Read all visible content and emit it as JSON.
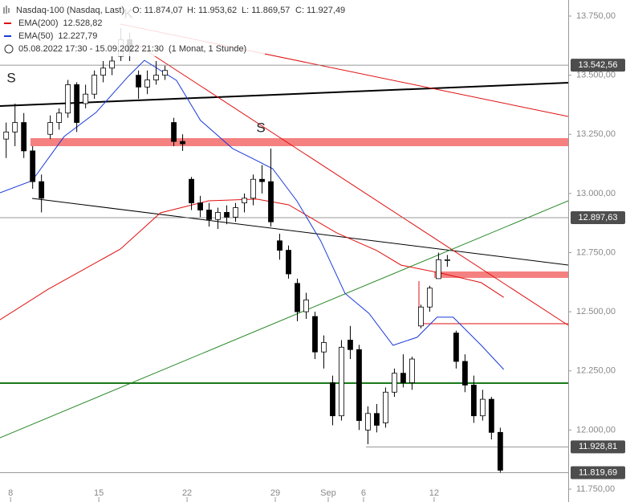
{
  "chart_data": {
    "type": "candlestick",
    "title": "Nasdaq-100 (Nasdaq, Last)",
    "quote": [
      "O: 11.874,07",
      "H: 11.953,62",
      "L: 11.869,57",
      "C: 11.927,49"
    ],
    "period": "05.08.2022 17:30 - 15.09.2022 21:30",
    "interval": "(1 Monat, 1 Stunde)",
    "annotations": [
      "S",
      "K",
      "S"
    ],
    "x": [
      -0.25,
      0.25,
      0.75,
      1.25,
      1.75,
      2.25,
      2.75,
      3.25,
      3.75,
      4.25,
      4.75,
      5.25,
      5.75,
      6.25,
      6.75,
      7.25,
      7.75,
      8.25,
      8.75,
      9.25,
      9.75,
      10.25,
      10.75,
      11.25,
      11.75,
      12.25,
      12.75,
      13.25,
      13.75,
      14.25,
      14.75,
      15.25,
      15.75,
      16.25,
      16.75,
      17.25,
      17.75,
      18.25,
      18.75,
      19.25,
      19.75,
      20.25,
      20.75,
      21.25,
      21.75,
      22.25,
      22.75,
      23.25,
      23.75,
      24.25,
      24.75,
      25.25,
      25.75,
      26.25,
      26.75,
      27.25,
      27.75
    ],
    "open": [
      13230,
      13260,
      13300,
      13180,
      13050,
      13250,
      13300,
      13340,
      13460,
      13380,
      13420,
      13500,
      13530,
      13580,
      13650,
      13500,
      13450,
      13480,
      13500,
      13300,
      13220,
      13060,
      12960,
      12930,
      12890,
      12920,
      12900,
      12960,
      12980,
      13060,
      13050,
      12800,
      12760,
      12620,
      12500,
      12480,
      12330,
      12200,
      12060,
      12380,
      12340,
      12000,
      12070,
      12030,
      12160,
      12240,
      12200,
      12440,
      12520,
      12640,
      12720,
      12410,
      12290,
      12190,
      12060,
      12130,
      11990
    ],
    "high": [
      13300,
      13380,
      13340,
      13200,
      13080,
      13330,
      13360,
      13480,
      13470,
      13460,
      13520,
      13560,
      13580,
      13700,
      13680,
      13520,
      13520,
      13560,
      13540,
      13320,
      13250,
      13070,
      12990,
      12960,
      12940,
      12950,
      12960,
      13000,
      13080,
      13120,
      13190,
      12830,
      12780,
      12640,
      12580,
      12500,
      12400,
      12230,
      12380,
      12440,
      12360,
      12100,
      12110,
      12180,
      12260,
      12320,
      12310,
      12530,
      12610,
      12750,
      12740,
      12420,
      12320,
      12230,
      12170,
      12140,
      12010
    ],
    "low": [
      13150,
      13200,
      13150,
      13020,
      12920,
      13230,
      13270,
      13320,
      13260,
      13360,
      13400,
      13470,
      13500,
      13560,
      13560,
      13400,
      13420,
      13460,
      13480,
      13200,
      13180,
      12930,
      12900,
      12860,
      12850,
      12870,
      12880,
      12920,
      12950,
      13000,
      12860,
      12720,
      12640,
      12460,
      12470,
      12300,
      12260,
      12020,
      12040,
      12300,
      12000,
      11940,
      11990,
      12010,
      12140,
      12180,
      12170,
      12430,
      12500,
      12640,
      12690,
      12260,
      12160,
      12030,
      12040,
      11960,
      11820
    ],
    "close": [
      13260,
      13300,
      13180,
      13050,
      12980,
      13300,
      13340,
      13460,
      13300,
      13420,
      13500,
      13530,
      13560,
      13650,
      13600,
      13450,
      13480,
      13500,
      13520,
      13220,
      13210,
      12960,
      12930,
      12890,
      12920,
      12900,
      12940,
      12980,
      13060,
      13050,
      12880,
      12760,
      12660,
      12500,
      12550,
      12330,
      12370,
      12060,
      12350,
      12340,
      12040,
      12070,
      12020,
      12160,
      12240,
      12200,
      12300,
      12520,
      12600,
      12720,
      12720,
      12290,
      12190,
      12060,
      12130,
      11990,
      11830
    ],
    "up_color": "#ffffff",
    "down_color": "#000000",
    "series": [
      {
        "name": "EMA(200)",
        "color": "#e01010",
        "legend_value": "12.528,82",
        "x": [
          -0.6,
          2.13,
          6.22,
          8.49,
          11.22,
          13.95,
          15.76,
          18.49,
          20.76,
          22.13,
          24.4,
          26.67,
          27.95
        ],
        "values": [
          12466,
          12595,
          12765,
          12918,
          12969,
          12976,
          12952,
          12833,
          12758,
          12697,
          12663,
          12623,
          12561
        ]
      },
      {
        "name": "EMA(50)",
        "color": "#1a3ad8",
        "legend_value": "12.227,79",
        "x": [
          -0.6,
          1.22,
          3.04,
          4.85,
          6.67,
          7.58,
          9.4,
          10.76,
          12.58,
          13.95,
          14.85,
          16.22,
          17.58,
          18.95,
          20.31,
          21.67,
          23.04,
          24.17,
          25.08,
          26.67,
          27.95
        ],
        "values": [
          13003,
          13054,
          13241,
          13343,
          13495,
          13563,
          13478,
          13309,
          13190,
          13139,
          13105,
          12969,
          12799,
          12578,
          12493,
          12358,
          12392,
          12477,
          12477,
          12358,
          12256
        ]
      }
    ],
    "levels": [
      {
        "value": 13542.56,
        "label": "13.542,56"
      },
      {
        "value": 12897.63,
        "label": "12.897,63"
      },
      {
        "value": 11928.81,
        "label": "11.928,81"
      },
      {
        "value": 11819.69,
        "label": "11.819,69"
      }
    ],
    "xlim": [
      -0.6,
      31.6
    ],
    "xticks": [
      {
        "value": 0,
        "label": "8"
      },
      {
        "value": 5,
        "label": "15"
      },
      {
        "value": 10,
        "label": "22"
      },
      {
        "value": 15,
        "label": "29"
      },
      {
        "value": 18,
        "label": "Sep"
      },
      {
        "value": 20,
        "label": "6"
      },
      {
        "value": 24,
        "label": "12"
      }
    ],
    "ylim": [
      11750,
      13750
    ],
    "yticks": [
      {
        "value": 11750,
        "label": "11.750,00"
      },
      {
        "value": 12000,
        "label": "12.000,00"
      },
      {
        "value": 12250,
        "label": "12.250,00"
      },
      {
        "value": 12500,
        "label": "12.500,00"
      },
      {
        "value": 12750,
        "label": "12.750,00"
      },
      {
        "value": 13000,
        "label": "13.000,00"
      },
      {
        "value": 13250,
        "label": "13.250,00"
      },
      {
        "value": 13500,
        "label": "13.500,00"
      },
      {
        "value": 13750,
        "label": "13.750,00"
      }
    ]
  }
}
